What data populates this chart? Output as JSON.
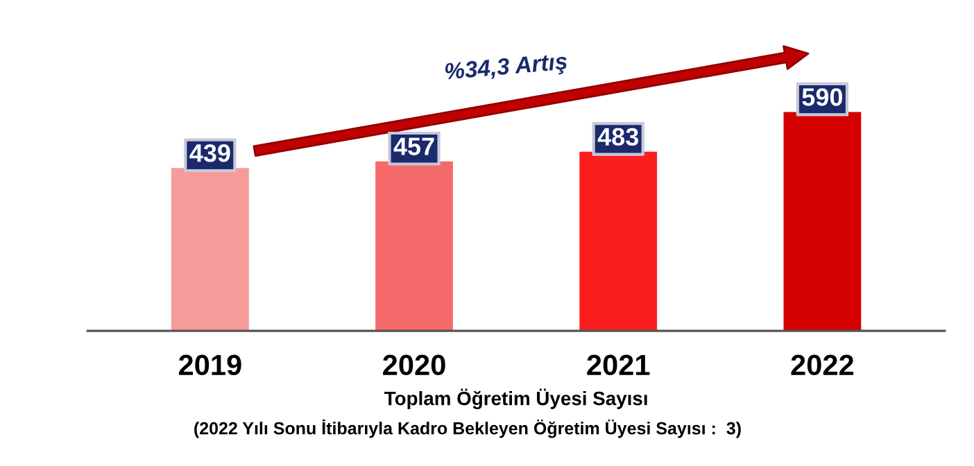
{
  "chart_data": {
    "type": "bar",
    "xlabel": "Toplam Öğretim Üyesi Sayısı",
    "categories": [
      "2019",
      "2020",
      "2021",
      "2022"
    ],
    "values": [
      439,
      457,
      483,
      590
    ],
    "colors": [
      "#f79a9a",
      "#f56a6a",
      "#fa1e1e",
      "#d40000"
    ],
    "data_labels": true,
    "tick_labels": "x",
    "grid": false,
    "annotations": [
      "%34,3 Artış",
      "(2022 Yılı Sonu İtibarıyla Kadro Bekleyen Öğretim Üyesi Sayısı :  3)"
    ]
  }
}
